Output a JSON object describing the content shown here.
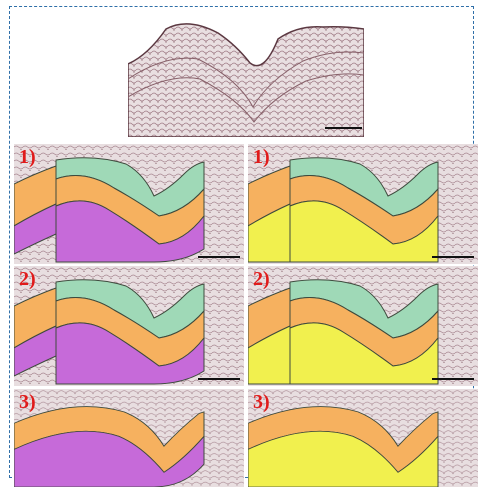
{
  "figure": {
    "panels": [
      {
        "label": "1)",
        "column": "left",
        "scheme": "three-layer"
      },
      {
        "label": "1)",
        "column": "right",
        "scheme": "two-layer-yellow"
      },
      {
        "label": "2)",
        "column": "left",
        "scheme": "three-layer"
      },
      {
        "label": "2)",
        "column": "right",
        "scheme": "two-layer-yellow"
      },
      {
        "label": "3)",
        "column": "left",
        "scheme": "two-layer-purple"
      },
      {
        "label": "3)",
        "column": "right",
        "scheme": "one-layer-yellow"
      }
    ],
    "colors": {
      "green": "#9fd9b7",
      "orange": "#f6b15f",
      "purple": "#c66ad9",
      "yellow": "#f1f04e",
      "label": "#e01b1b",
      "frame": "#2f6fa8"
    }
  }
}
